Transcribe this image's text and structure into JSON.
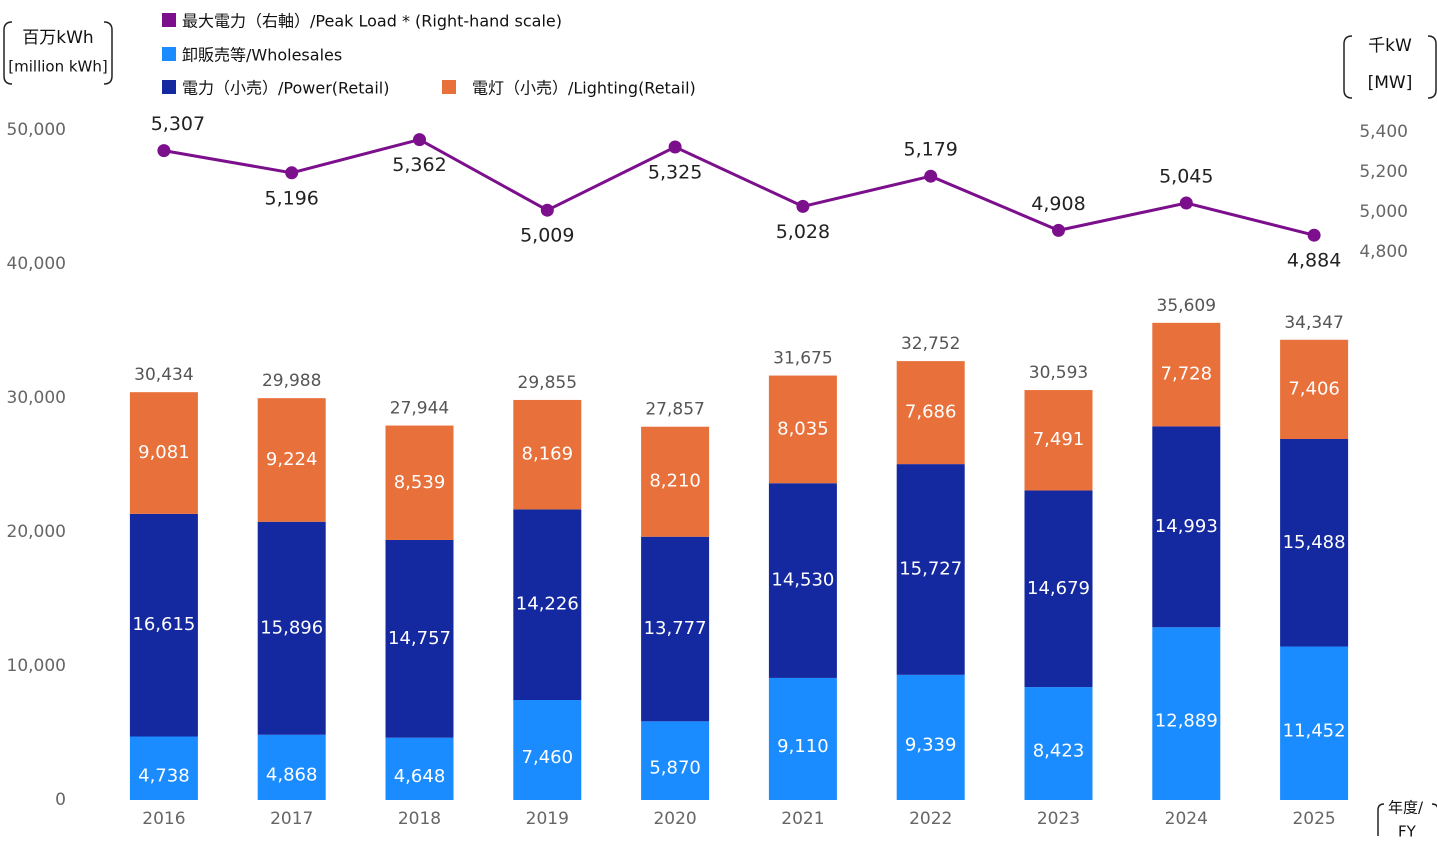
{
  "chart_data": {
    "type": "bar",
    "stacked": true,
    "y_unit": [
      "百万kWh",
      "[million kWh]"
    ],
    "y2_unit": [
      "千kW",
      "[MW]"
    ],
    "x_unit": [
      "年度/",
      "FY"
    ],
    "categories": [
      "2016",
      "2017",
      "2018",
      "2019",
      "2020",
      "2021",
      "2022",
      "2023",
      "2024",
      "2025"
    ],
    "series": [
      {
        "name": "最大電力（右軸）/Peak Load * (Right-hand scale)",
        "type": "line",
        "axis": "y2",
        "color": "#7b0f8c",
        "values": [
          5307,
          5196,
          5362,
          5009,
          5325,
          5028,
          5179,
          4908,
          5045,
          4884
        ],
        "value_labels": [
          "5,307",
          "5,196",
          "5,362",
          "5,009",
          "5,325",
          "5,028",
          "5,179",
          "4,908",
          "5,045",
          "4,884"
        ]
      },
      {
        "name": "卸販売等/Wholesales",
        "type": "bar",
        "color": "#1a8cff",
        "values": [
          4738,
          4868,
          4648,
          7460,
          5870,
          9110,
          9339,
          8423,
          12889,
          11452
        ],
        "value_labels": [
          "4,738",
          "4,868",
          "4,648",
          "7,460",
          "5,870",
          "9,110",
          "9,339",
          "8,423",
          "12,889",
          "11,452"
        ]
      },
      {
        "name": "電力（小売）/Power(Retail)",
        "type": "bar",
        "color": "#1428a0",
        "values": [
          16615,
          15896,
          14757,
          14226,
          13777,
          14530,
          15727,
          14679,
          14993,
          15488
        ],
        "value_labels": [
          "16,615",
          "15,896",
          "14,757",
          "14,226",
          "13,777",
          "14,530",
          "15,727",
          "14,679",
          "14,993",
          "15,488"
        ]
      },
      {
        "name": "電灯（小売）/Lighting(Retail)",
        "type": "bar",
        "color": "#e8703a",
        "values": [
          9081,
          9224,
          8539,
          8169,
          8210,
          8035,
          7686,
          7491,
          7728,
          7406
        ],
        "value_labels": [
          "9,081",
          "9,224",
          "8,539",
          "8,169",
          "8,210",
          "8,035",
          "7,686",
          "7,491",
          "7,728",
          "7,406"
        ]
      }
    ],
    "totals": [
      30434,
      29988,
      27944,
      29855,
      27857,
      31675,
      32752,
      30593,
      35609,
      34347
    ],
    "total_labels": [
      "30,434",
      "29,988",
      "27,944",
      "29,855",
      "27,857",
      "31,675",
      "32,752",
      "30,593",
      "35,609",
      "34,347"
    ],
    "ylim": [
      0,
      50000
    ],
    "yticks": [
      0,
      {
        "value": 10000,
        "label": "10,000"
      },
      {
        "value": 20000,
        "label": "20,000"
      },
      {
        "value": 30000,
        "label": "30,000"
      },
      {
        "value": 40000,
        "label": "40,000"
      },
      {
        "value": 50000,
        "label": "50,000"
      }
    ],
    "y2lim": [
      2060,
      5410
    ],
    "y2ticks": [
      {
        "value": 4800,
        "label": "4,800"
      },
      {
        "value": 5000,
        "label": "5,000"
      },
      {
        "value": 5200,
        "label": "5,200"
      },
      {
        "value": 5400,
        "label": "5,400"
      }
    ],
    "grid": false
  }
}
